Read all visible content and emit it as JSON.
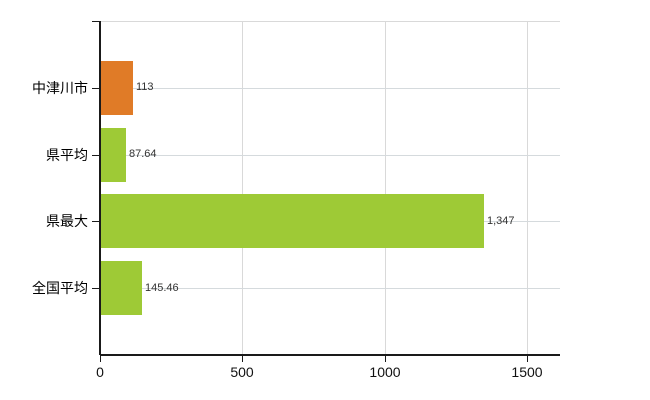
{
  "chart_data": {
    "type": "bar",
    "orientation": "horizontal",
    "title": "",
    "xlabel": "",
    "ylabel": "",
    "categories": [
      "中津川市",
      "県平均",
      "県最大",
      "全国平均"
    ],
    "values": [
      113,
      87.64,
      1347,
      145.46
    ],
    "value_labels": [
      "113",
      "87.64",
      "1,347",
      "145.46"
    ],
    "bar_colors": [
      "#e07b27",
      "#9eca36",
      "#9eca36",
      "#9eca36"
    ],
    "x_ticks": [
      0,
      500,
      1000,
      1500
    ],
    "x_tick_labels": [
      "0",
      "500",
      "1000",
      "1500"
    ],
    "xlim": [
      0,
      1616
    ],
    "grid": true,
    "legend": false,
    "colors": {
      "background": "#ffffff",
      "axis": "#1a1a1a",
      "gridline": "#d9d9d9",
      "row_line": "#d5dadd",
      "category_text": "#000000",
      "value_text": "#333333",
      "tick_text": "#111111"
    }
  }
}
